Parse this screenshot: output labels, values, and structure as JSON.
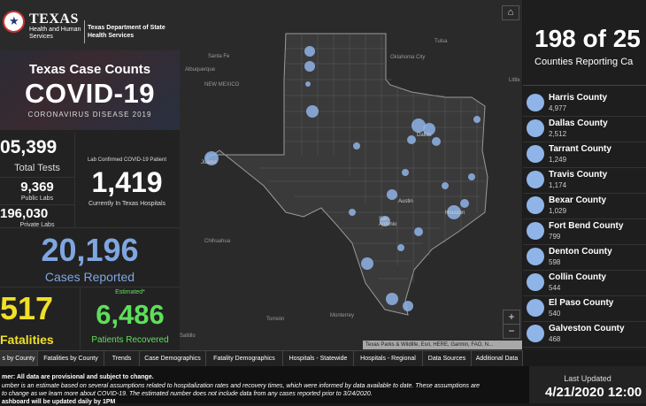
{
  "header": {
    "agency_big": "TEXAS",
    "agency_small": "Health and Human Services",
    "dshs": "Texas Department of State Health Services",
    "title": "Texas Case Counts",
    "covid": "COVID-19",
    "subtitle": "CORONAVIRUS DISEASE 2019"
  },
  "stats": {
    "total_tests_value": "05,399",
    "total_tests_label": "Total Tests",
    "public_labs_value": "9,369",
    "public_labs_label": "Public Labs",
    "private_labs_value": "196,030",
    "private_labs_label": "Private Labs",
    "hospital_caption": "Lab Confirmed COVID-19 Patient",
    "hospital_value": "1,419",
    "hospital_label": "Currently In Texas Hospitals",
    "cases_value": "20,196",
    "cases_label": "Cases Reported",
    "fatalities_value": "517",
    "fatalities_label": "Fatalities",
    "recovered_caption": "Estimated*",
    "recovered_value": "6,486",
    "recovered_label": "Patients Recovered"
  },
  "map": {
    "labels": [
      "Santa Fe",
      "Albuquerque",
      "NEW MEXICO",
      "Oklahoma City",
      "Tulsa",
      "Dallas",
      "Juárez",
      "Austin",
      "San Antonio",
      "Houston",
      "Chihuahua",
      "Torreón",
      "Monterrey",
      "Saltillo",
      "Little"
    ],
    "attribution": "Texas Parks & Wildlife, Esri, HERE, Garmin, FAO, N...",
    "zoom_in": "+",
    "zoom_out": "−",
    "home_icon": "⌂"
  },
  "right_panel": {
    "headline": "198 of 25",
    "caption": "Counties Reporting Ca",
    "counties": [
      {
        "name": "Harris County",
        "value": "4,977"
      },
      {
        "name": "Dallas County",
        "value": "2,512"
      },
      {
        "name": "Tarrant County",
        "value": "1,249"
      },
      {
        "name": "Travis County",
        "value": "1,174"
      },
      {
        "name": "Bexar County",
        "value": "1,029"
      },
      {
        "name": "Fort Bend County",
        "value": "799"
      },
      {
        "name": "Denton County",
        "value": "598"
      },
      {
        "name": "Collin County",
        "value": "544"
      },
      {
        "name": "El Paso County",
        "value": "540"
      },
      {
        "name": "Galveston County",
        "value": "468"
      }
    ]
  },
  "tabs": [
    "s by County",
    "Fatalities by County",
    "Trends",
    "Case Demographics",
    "Fatality Demographics",
    "Hospitals - Statewide",
    "Hospitals - Regional",
    "Data Sources",
    "Additional Data"
  ],
  "disclaimer": {
    "line1": "mer: All data are provisional and subject to change.",
    "line2": "umber is an estimate based on several assumptions related to hospitalization rates and recovery times, which were informed by data available to date. These assumptions are",
    "line3": "to change as we learn more about COVID-19. The estimated number does not include data from any cases reported prior to 3/24/2020.",
    "line4": "ashboard will be updated daily by 1PM"
  },
  "updated": {
    "label": "Last Updated",
    "value": "4/21/2020 12:00"
  },
  "colors": {
    "cases_blue": "#7fa6e0",
    "fatalities_yellow": "#f0e028",
    "recovered_green": "#5ee05a",
    "dot_blue": "#8fb4e8"
  }
}
